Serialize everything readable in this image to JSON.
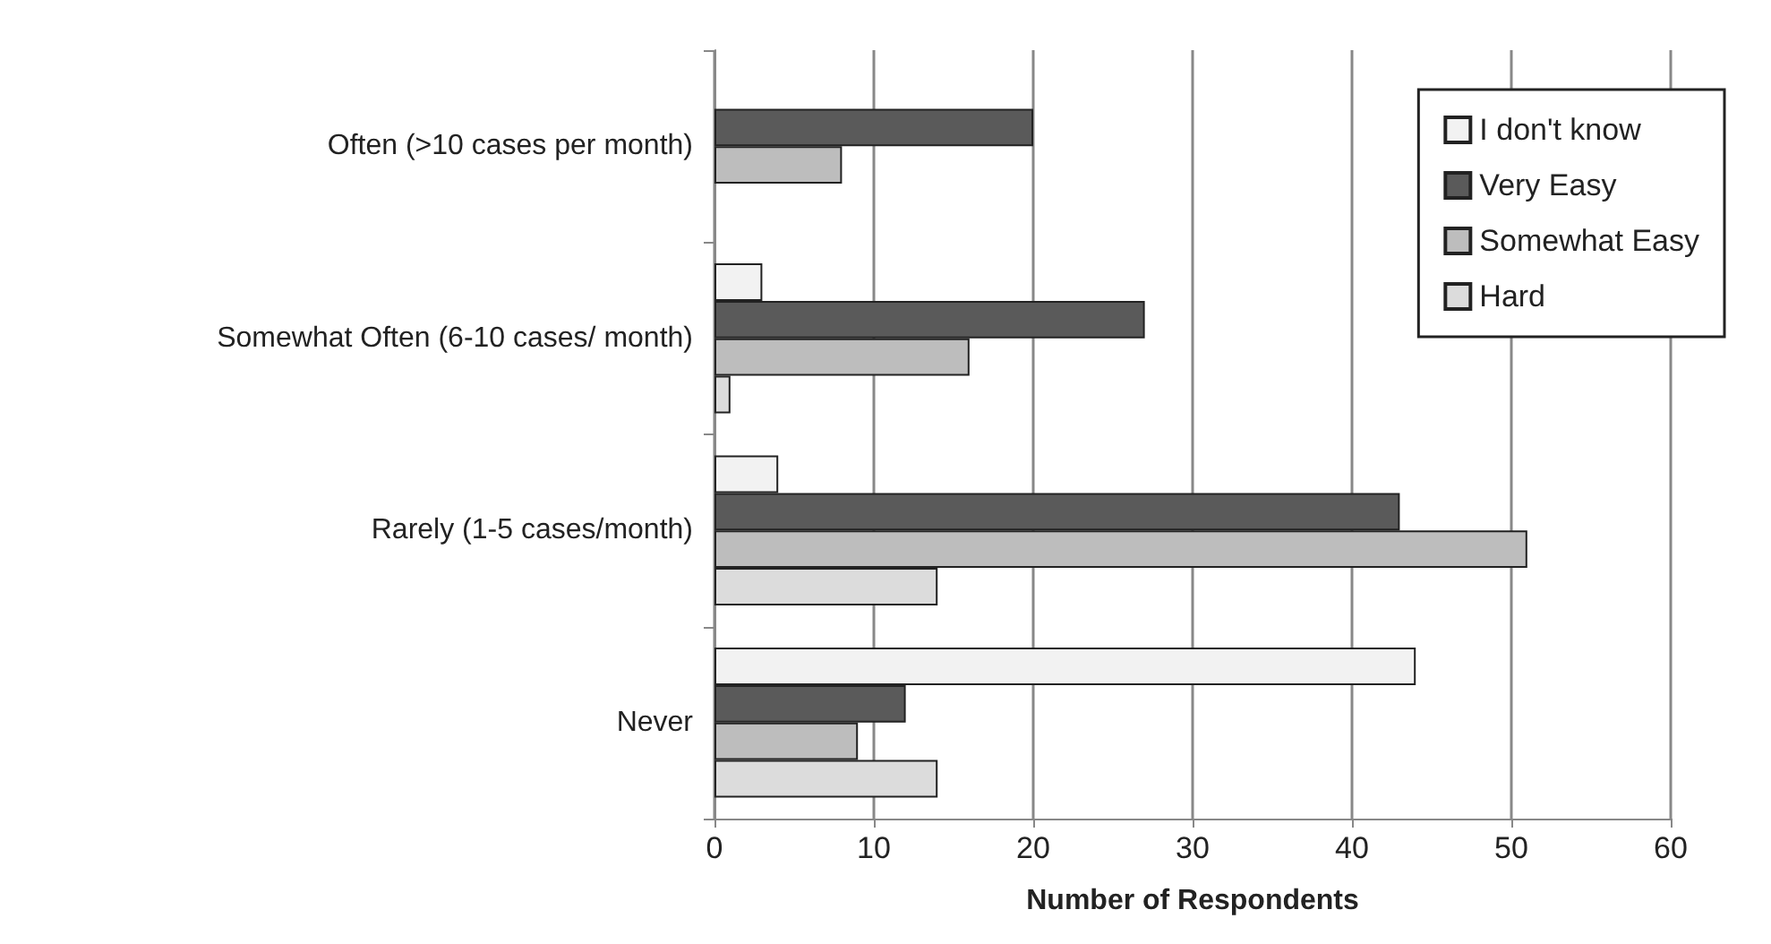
{
  "chart_data": {
    "type": "bar",
    "orientation": "horizontal",
    "xlabel": "Number of Respondents",
    "categories": [
      "Often (>10 cases per month)",
      "Somewhat Often (6-10 cases/ month)",
      "Rarely (1-5 cases/month)",
      "Never"
    ],
    "series": [
      {
        "name": "I don't know",
        "color": "#f2f2f2",
        "values": [
          0,
          3,
          4,
          44
        ]
      },
      {
        "name": "Very Easy",
        "color": "#5a5a5a",
        "values": [
          20,
          27,
          43,
          12
        ]
      },
      {
        "name": "Somewhat Easy",
        "color": "#bdbdbd",
        "values": [
          8,
          16,
          51,
          9
        ]
      },
      {
        "name": "Hard",
        "color": "#dcdcdc",
        "values": [
          0,
          1,
          14,
          14
        ]
      }
    ],
    "xlim": [
      0,
      60
    ],
    "xticks": [
      0,
      10,
      20,
      30,
      40,
      50,
      60
    ],
    "grid": "x",
    "legend": "top right"
  }
}
